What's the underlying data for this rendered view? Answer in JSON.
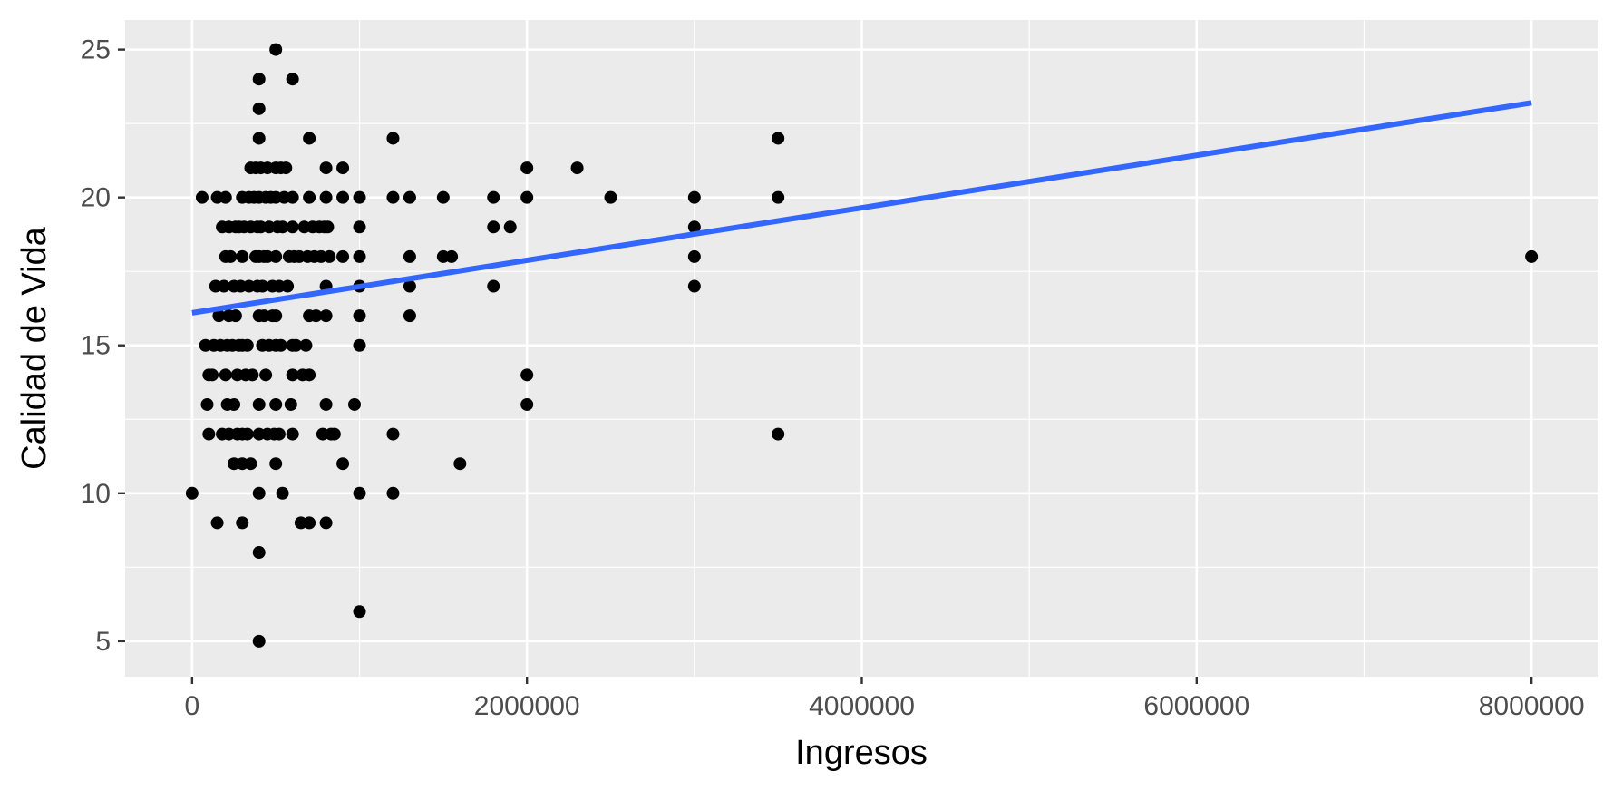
{
  "chart_data": {
    "type": "scatter",
    "title": "",
    "xlabel": "Ingresos",
    "ylabel": "Calidad de Vida",
    "xlim": [
      -400000,
      8400000
    ],
    "ylim": [
      3.8,
      26
    ],
    "x_ticks": [
      0,
      2000000,
      4000000,
      6000000,
      8000000
    ],
    "x_tick_labels": [
      "0",
      "2000000",
      "4000000",
      "6000000",
      "8000000"
    ],
    "y_ticks": [
      5,
      10,
      15,
      20,
      25
    ],
    "y_tick_labels": [
      "5",
      "10",
      "15",
      "20",
      "25"
    ],
    "grid": true,
    "colors": {
      "panel": "#ebebeb",
      "grid": "#ffffff",
      "points": "#000000",
      "fit_line": "#3366ff"
    },
    "fit_line": {
      "x": [
        0,
        8000000
      ],
      "y": [
        16.1,
        23.2
      ]
    },
    "points": [
      {
        "x": 0,
        "y": 10
      },
      {
        "x": 60000,
        "y": 20
      },
      {
        "x": 80000,
        "y": 15
      },
      {
        "x": 90000,
        "y": 13
      },
      {
        "x": 100000,
        "y": 14
      },
      {
        "x": 100000,
        "y": 12
      },
      {
        "x": 120000,
        "y": 14
      },
      {
        "x": 130000,
        "y": 15
      },
      {
        "x": 140000,
        "y": 17
      },
      {
        "x": 150000,
        "y": 20
      },
      {
        "x": 150000,
        "y": 9
      },
      {
        "x": 160000,
        "y": 16
      },
      {
        "x": 170000,
        "y": 15
      },
      {
        "x": 180000,
        "y": 19
      },
      {
        "x": 180000,
        "y": 12
      },
      {
        "x": 190000,
        "y": 17
      },
      {
        "x": 200000,
        "y": 20
      },
      {
        "x": 200000,
        "y": 18
      },
      {
        "x": 200000,
        "y": 14
      },
      {
        "x": 210000,
        "y": 15
      },
      {
        "x": 210000,
        "y": 13
      },
      {
        "x": 220000,
        "y": 19
      },
      {
        "x": 220000,
        "y": 16
      },
      {
        "x": 220000,
        "y": 12
      },
      {
        "x": 230000,
        "y": 18
      },
      {
        "x": 240000,
        "y": 15
      },
      {
        "x": 250000,
        "y": 17
      },
      {
        "x": 250000,
        "y": 13
      },
      {
        "x": 250000,
        "y": 11
      },
      {
        "x": 260000,
        "y": 19
      },
      {
        "x": 260000,
        "y": 16
      },
      {
        "x": 270000,
        "y": 14
      },
      {
        "x": 270000,
        "y": 12
      },
      {
        "x": 280000,
        "y": 19
      },
      {
        "x": 280000,
        "y": 15
      },
      {
        "x": 290000,
        "y": 17
      },
      {
        "x": 300000,
        "y": 20
      },
      {
        "x": 300000,
        "y": 18
      },
      {
        "x": 300000,
        "y": 15
      },
      {
        "x": 300000,
        "y": 12
      },
      {
        "x": 300000,
        "y": 11
      },
      {
        "x": 300000,
        "y": 9
      },
      {
        "x": 310000,
        "y": 19
      },
      {
        "x": 320000,
        "y": 14
      },
      {
        "x": 330000,
        "y": 15
      },
      {
        "x": 330000,
        "y": 12
      },
      {
        "x": 340000,
        "y": 20
      },
      {
        "x": 340000,
        "y": 17
      },
      {
        "x": 350000,
        "y": 21
      },
      {
        "x": 350000,
        "y": 19
      },
      {
        "x": 350000,
        "y": 11
      },
      {
        "x": 360000,
        "y": 14
      },
      {
        "x": 370000,
        "y": 20
      },
      {
        "x": 380000,
        "y": 18
      },
      {
        "x": 380000,
        "y": 21
      },
      {
        "x": 390000,
        "y": 19
      },
      {
        "x": 390000,
        "y": 17
      },
      {
        "x": 400000,
        "y": 24
      },
      {
        "x": 400000,
        "y": 23
      },
      {
        "x": 400000,
        "y": 22
      },
      {
        "x": 400000,
        "y": 20
      },
      {
        "x": 400000,
        "y": 18
      },
      {
        "x": 400000,
        "y": 16
      },
      {
        "x": 400000,
        "y": 13
      },
      {
        "x": 400000,
        "y": 12
      },
      {
        "x": 400000,
        "y": 10
      },
      {
        "x": 400000,
        "y": 8
      },
      {
        "x": 400000,
        "y": 5
      },
      {
        "x": 410000,
        "y": 21
      },
      {
        "x": 410000,
        "y": 19
      },
      {
        "x": 420000,
        "y": 17
      },
      {
        "x": 420000,
        "y": 15
      },
      {
        "x": 430000,
        "y": 18
      },
      {
        "x": 430000,
        "y": 16
      },
      {
        "x": 440000,
        "y": 20
      },
      {
        "x": 440000,
        "y": 14
      },
      {
        "x": 450000,
        "y": 21
      },
      {
        "x": 450000,
        "y": 18
      },
      {
        "x": 450000,
        "y": 12
      },
      {
        "x": 460000,
        "y": 19
      },
      {
        "x": 460000,
        "y": 15
      },
      {
        "x": 470000,
        "y": 20
      },
      {
        "x": 480000,
        "y": 17
      },
      {
        "x": 480000,
        "y": 16
      },
      {
        "x": 490000,
        "y": 12
      },
      {
        "x": 500000,
        "y": 25
      },
      {
        "x": 500000,
        "y": 21
      },
      {
        "x": 500000,
        "y": 20
      },
      {
        "x": 500000,
        "y": 18
      },
      {
        "x": 500000,
        "y": 16
      },
      {
        "x": 500000,
        "y": 15
      },
      {
        "x": 500000,
        "y": 13
      },
      {
        "x": 500000,
        "y": 11
      },
      {
        "x": 510000,
        "y": 19
      },
      {
        "x": 520000,
        "y": 17
      },
      {
        "x": 520000,
        "y": 12
      },
      {
        "x": 530000,
        "y": 21
      },
      {
        "x": 530000,
        "y": 15
      },
      {
        "x": 540000,
        "y": 19
      },
      {
        "x": 540000,
        "y": 10
      },
      {
        "x": 550000,
        "y": 20
      },
      {
        "x": 560000,
        "y": 21
      },
      {
        "x": 570000,
        "y": 17
      },
      {
        "x": 580000,
        "y": 18
      },
      {
        "x": 590000,
        "y": 13
      },
      {
        "x": 600000,
        "y": 24
      },
      {
        "x": 600000,
        "y": 20
      },
      {
        "x": 600000,
        "y": 19
      },
      {
        "x": 600000,
        "y": 15
      },
      {
        "x": 600000,
        "y": 14
      },
      {
        "x": 600000,
        "y": 12
      },
      {
        "x": 610000,
        "y": 18
      },
      {
        "x": 620000,
        "y": 15
      },
      {
        "x": 640000,
        "y": 18
      },
      {
        "x": 650000,
        "y": 9
      },
      {
        "x": 660000,
        "y": 14
      },
      {
        "x": 670000,
        "y": 19
      },
      {
        "x": 680000,
        "y": 15
      },
      {
        "x": 690000,
        "y": 18
      },
      {
        "x": 700000,
        "y": 22
      },
      {
        "x": 700000,
        "y": 20
      },
      {
        "x": 700000,
        "y": 16
      },
      {
        "x": 700000,
        "y": 14
      },
      {
        "x": 700000,
        "y": 9
      },
      {
        "x": 720000,
        "y": 19
      },
      {
        "x": 730000,
        "y": 18
      },
      {
        "x": 740000,
        "y": 16
      },
      {
        "x": 760000,
        "y": 19
      },
      {
        "x": 770000,
        "y": 18
      },
      {
        "x": 780000,
        "y": 12
      },
      {
        "x": 790000,
        "y": 19
      },
      {
        "x": 800000,
        "y": 21
      },
      {
        "x": 800000,
        "y": 20
      },
      {
        "x": 800000,
        "y": 17
      },
      {
        "x": 800000,
        "y": 16
      },
      {
        "x": 800000,
        "y": 13
      },
      {
        "x": 800000,
        "y": 9
      },
      {
        "x": 810000,
        "y": 19
      },
      {
        "x": 820000,
        "y": 18
      },
      {
        "x": 830000,
        "y": 12
      },
      {
        "x": 850000,
        "y": 12
      },
      {
        "x": 900000,
        "y": 21
      },
      {
        "x": 900000,
        "y": 20
      },
      {
        "x": 900000,
        "y": 18
      },
      {
        "x": 900000,
        "y": 11
      },
      {
        "x": 970000,
        "y": 13
      },
      {
        "x": 1000000,
        "y": 20
      },
      {
        "x": 1000000,
        "y": 19
      },
      {
        "x": 1000000,
        "y": 18
      },
      {
        "x": 1000000,
        "y": 17
      },
      {
        "x": 1000000,
        "y": 16
      },
      {
        "x": 1000000,
        "y": 15
      },
      {
        "x": 1000000,
        "y": 10
      },
      {
        "x": 1000000,
        "y": 6
      },
      {
        "x": 1200000,
        "y": 22
      },
      {
        "x": 1200000,
        "y": 20
      },
      {
        "x": 1200000,
        "y": 12
      },
      {
        "x": 1200000,
        "y": 10
      },
      {
        "x": 1300000,
        "y": 20
      },
      {
        "x": 1300000,
        "y": 18
      },
      {
        "x": 1300000,
        "y": 17
      },
      {
        "x": 1300000,
        "y": 16
      },
      {
        "x": 1500000,
        "y": 20
      },
      {
        "x": 1500000,
        "y": 18
      },
      {
        "x": 1550000,
        "y": 18
      },
      {
        "x": 1600000,
        "y": 11
      },
      {
        "x": 1800000,
        "y": 20
      },
      {
        "x": 1800000,
        "y": 19
      },
      {
        "x": 1800000,
        "y": 17
      },
      {
        "x": 1900000,
        "y": 19
      },
      {
        "x": 2000000,
        "y": 21
      },
      {
        "x": 2000000,
        "y": 20
      },
      {
        "x": 2000000,
        "y": 14
      },
      {
        "x": 2000000,
        "y": 13
      },
      {
        "x": 2300000,
        "y": 21
      },
      {
        "x": 2500000,
        "y": 20
      },
      {
        "x": 3000000,
        "y": 20
      },
      {
        "x": 3000000,
        "y": 19
      },
      {
        "x": 3000000,
        "y": 18
      },
      {
        "x": 3000000,
        "y": 17
      },
      {
        "x": 3500000,
        "y": 22
      },
      {
        "x": 3500000,
        "y": 20
      },
      {
        "x": 3500000,
        "y": 12
      },
      {
        "x": 8000000,
        "y": 18
      }
    ]
  }
}
